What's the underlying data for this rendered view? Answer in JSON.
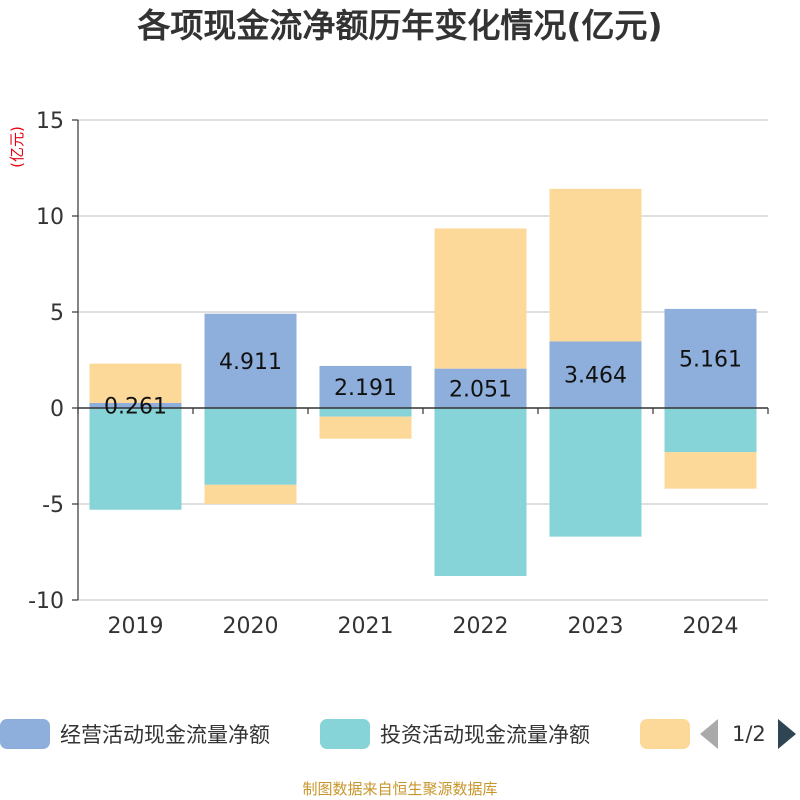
{
  "colors": {
    "operating": "#8eaedb",
    "investing": "#86d4d8",
    "financing": "#fcd999",
    "axis_unit": "#e60012",
    "footer": "#c8962a"
  },
  "chart_data": {
    "type": "bar",
    "stacked": true,
    "title": "各项现金流净额历年变化情况(亿元)",
    "ylabel": "(亿元)",
    "xlabel": "",
    "ylim": [
      -10,
      15
    ],
    "yticks": [
      15,
      10,
      5,
      0,
      -5,
      -10
    ],
    "grid": true,
    "categories": [
      "2019",
      "2020",
      "2021",
      "2022",
      "2023",
      "2024"
    ],
    "series": [
      {
        "name": "经营活动现金流量净额",
        "key": "operating",
        "values": [
          0.261,
          4.911,
          2.191,
          2.051,
          3.464,
          5.161
        ],
        "labels": [
          "0.261",
          "4.911",
          "2.191",
          "2.051",
          "3.464",
          "5.161"
        ]
      },
      {
        "name": "投资活动现金流量净额",
        "key": "investing",
        "values": [
          -5.3,
          -4.0,
          -0.45,
          -8.75,
          -6.7,
          -2.3
        ]
      },
      {
        "name": "",
        "key": "financing",
        "values": [
          2.05,
          -1.0,
          -1.15,
          7.3,
          7.95,
          -1.9
        ]
      }
    ]
  },
  "legend": {
    "items": [
      {
        "label": "经营活动现金流量净额"
      },
      {
        "label": "投资活动现金流量净额"
      },
      {
        "label": ""
      }
    ],
    "page_indicator": "1/2"
  },
  "footer": "制图数据来自恒生聚源数据库"
}
